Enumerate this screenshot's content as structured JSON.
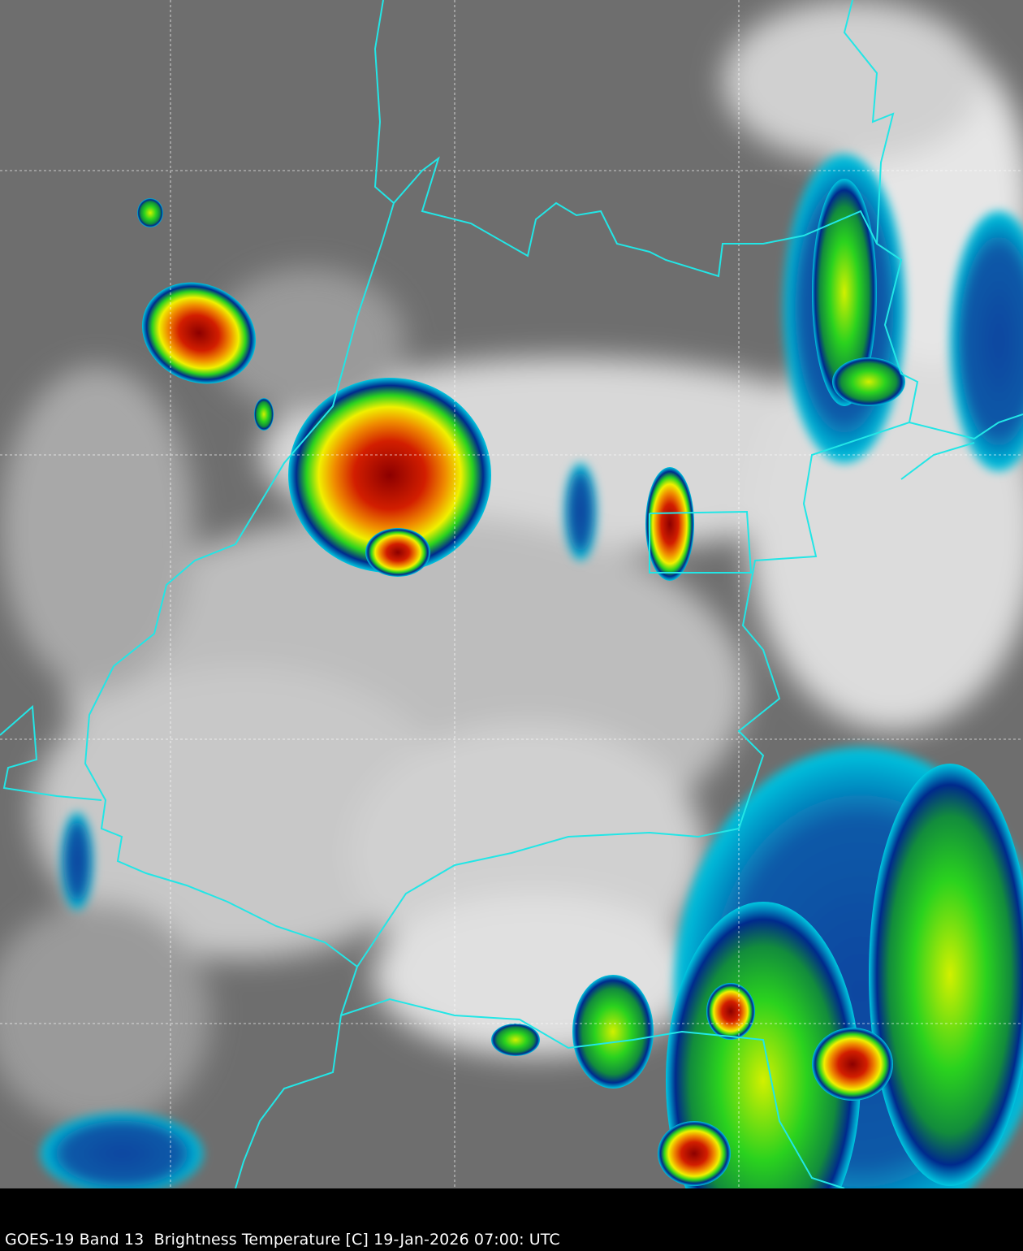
{
  "caption": "GOES-19 Band 13  Brightness Temperature [C] 19-Jan-2026 07:00: UTC",
  "colors": {
    "background": "#000000",
    "clear_sky": "#6e6e6e",
    "cloud_white": "#f2f2f2",
    "border": "#22e6e6",
    "grid": "#ffffff",
    "cold_cyan": "#00c8e0",
    "cold_blue": "#002a8c",
    "cold_green": "#2ad21e",
    "cold_yellow": "#f0f000",
    "cold_red": "#d21e00",
    "coldest_dark_red": "#8c0000"
  }
}
